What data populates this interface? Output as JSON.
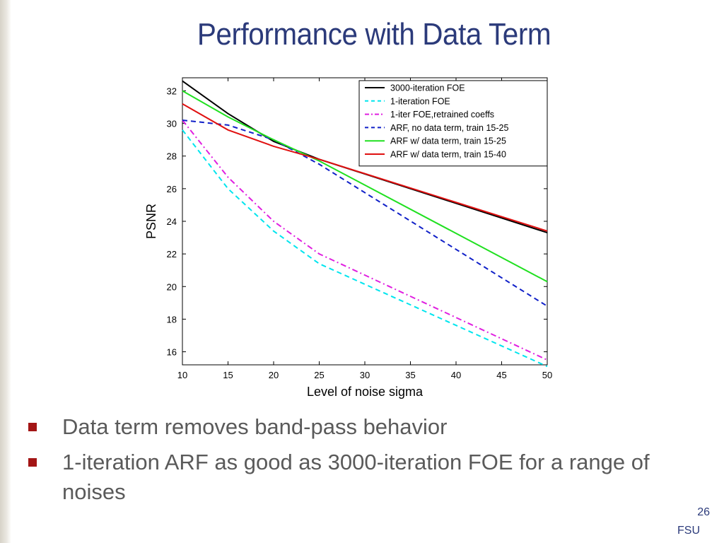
{
  "slide": {
    "title": "Performance with Data Term",
    "bullets": [
      "Data term removes band-pass behavior",
      "1-iteration ARF as good as 3000-iteration FOE for a range of noises"
    ],
    "slide_number": "26",
    "footer": "FSU",
    "colors": {
      "title": "#2b3a7a",
      "bullet_marker": "#a31515",
      "body_text": "#5a5a5a"
    }
  },
  "chart_data": {
    "type": "line",
    "xlabel": "Level of noise sigma",
    "ylabel": "PSNR",
    "xlim": [
      10,
      50
    ],
    "ylim": [
      15.2,
      32.8
    ],
    "xticks": [
      10,
      15,
      20,
      25,
      30,
      35,
      40,
      45,
      50
    ],
    "yticks": [
      16,
      18,
      20,
      22,
      24,
      26,
      28,
      30,
      32
    ],
    "grid": false,
    "legend_position": "top-right",
    "series": [
      {
        "name": "3000-iteration FOE",
        "color": "#000000",
        "style": "solid",
        "x": [
          10,
          15,
          20,
          25,
          50
        ],
        "y": [
          32.6,
          30.6,
          28.9,
          27.8,
          23.3
        ]
      },
      {
        "name": "1-iteration FOE",
        "color": "#00e5ee",
        "style": "dashed",
        "x": [
          10,
          15,
          20,
          25,
          50
        ],
        "y": [
          29.6,
          26.0,
          23.4,
          21.4,
          15.1
        ]
      },
      {
        "name": "1-iter FOE,retrained coeffs",
        "color": "#e020e0",
        "style": "dashdot",
        "x": [
          10,
          15,
          20,
          25,
          50
        ],
        "y": [
          30.2,
          26.7,
          24.0,
          22.0,
          15.5
        ]
      },
      {
        "name": "ARF, no data term, train 15-25",
        "color": "#1020c8",
        "style": "dashed",
        "x": [
          10,
          15,
          20,
          25,
          50
        ],
        "y": [
          30.2,
          29.9,
          29.0,
          27.5,
          18.8
        ]
      },
      {
        "name": "ARF w/ data term, train 15-25",
        "color": "#20e020",
        "style": "solid",
        "x": [
          10,
          15,
          20,
          25,
          50
        ],
        "y": [
          32.0,
          30.4,
          29.0,
          27.7,
          20.3
        ]
      },
      {
        "name": "ARF w/ data term, train 15-40",
        "color": "#e01010",
        "style": "solid",
        "x": [
          10,
          15,
          20,
          25,
          50
        ],
        "y": [
          31.2,
          29.6,
          28.6,
          27.8,
          23.4
        ]
      }
    ]
  }
}
